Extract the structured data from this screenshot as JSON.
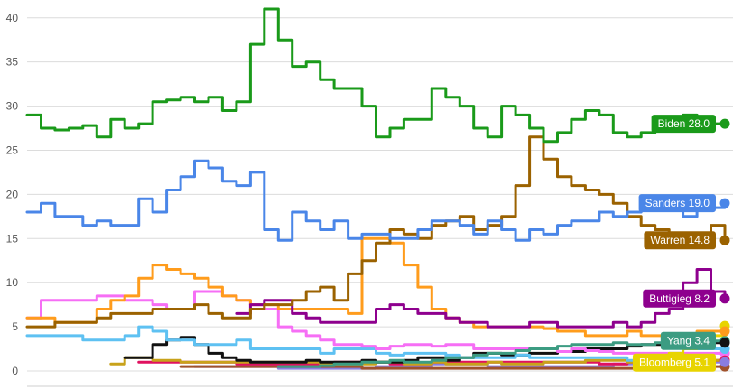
{
  "chart_data": {
    "type": "line",
    "title": "",
    "xlabel": "",
    "ylabel": "",
    "ylim": [
      0,
      41
    ],
    "yticks": [
      0,
      5,
      10,
      15,
      20,
      25,
      30,
      35,
      40
    ],
    "ytick_labels": [
      "0",
      "5",
      "10",
      "15",
      "20",
      "25",
      "30",
      "35",
      "40"
    ],
    "grid": true,
    "x": [
      0,
      2,
      4,
      6,
      8,
      10,
      12,
      14,
      16,
      18,
      20,
      22,
      24,
      26,
      28,
      30,
      32,
      34,
      36,
      38,
      40,
      42,
      44,
      46,
      48,
      50,
      52,
      54,
      56,
      58,
      60,
      62,
      64,
      66,
      68,
      70,
      72,
      74,
      76,
      78,
      80,
      82,
      84,
      86,
      88,
      90,
      92,
      94,
      96,
      98,
      100
    ],
    "series": [
      {
        "name": "Biden",
        "label": "Biden 28.0",
        "color": "#1a9a1a",
        "values": [
          29.0,
          27.5,
          27.3,
          27.5,
          27.8,
          26.5,
          28.5,
          27.5,
          28.0,
          30.5,
          30.7,
          31.0,
          30.5,
          31.0,
          29.5,
          30.5,
          37.0,
          41.0,
          37.5,
          34.5,
          35.0,
          33.0,
          32.0,
          32.0,
          30.0,
          26.5,
          27.5,
          28.5,
          28.5,
          32.0,
          31.0,
          30.0,
          27.5,
          26.5,
          30.0,
          29.0,
          27.5,
          26.0,
          27.0,
          28.5,
          29.5,
          29.0,
          27.0,
          26.5,
          27.0,
          28.5,
          27.5,
          29.0,
          28.5,
          28.0,
          28.0
        ]
      },
      {
        "name": "Sanders",
        "label": "Sanders 19.0",
        "color": "#4a86e8",
        "values": [
          18.0,
          19.0,
          17.5,
          17.5,
          16.5,
          17.0,
          16.5,
          16.5,
          19.5,
          18.0,
          20.5,
          22.0,
          23.8,
          23.0,
          21.5,
          21.0,
          22.5,
          16.0,
          14.8,
          18.0,
          17.0,
          16.0,
          17.0,
          15.0,
          15.5,
          15.5,
          15.0,
          15.0,
          16.0,
          17.0,
          17.0,
          16.5,
          15.5,
          17.0,
          16.0,
          14.8,
          16.0,
          15.5,
          16.5,
          17.0,
          17.0,
          18.0,
          17.5,
          18.0,
          19.0,
          19.0,
          18.5,
          17.5,
          18.5,
          18.5,
          19.0
        ]
      },
      {
        "name": "Warren",
        "label": "Warren 14.8",
        "color": "#9b6200",
        "values": [
          5.0,
          5.0,
          5.5,
          5.5,
          5.5,
          6.0,
          6.5,
          6.5,
          6.5,
          7.0,
          7.0,
          7.0,
          7.5,
          6.5,
          6.0,
          6.0,
          7.0,
          7.5,
          7.5,
          8.0,
          9.0,
          9.5,
          8.0,
          11.0,
          12.5,
          14.5,
          16.0,
          15.5,
          15.0,
          16.5,
          17.0,
          17.5,
          16.0,
          16.5,
          17.5,
          21.0,
          26.5,
          24.0,
          22.0,
          21.0,
          20.5,
          20.0,
          19.0,
          17.5,
          16.5,
          16.0,
          15.0,
          14.5,
          15.5,
          16.5,
          14.8
        ]
      },
      {
        "name": "Buttigieg",
        "label": "Buttigieg 8.2",
        "color": "#8e008e",
        "values": [
          null,
          null,
          null,
          null,
          null,
          null,
          null,
          null,
          null,
          null,
          null,
          null,
          null,
          null,
          null,
          6.5,
          7.5,
          8.0,
          8.0,
          6.5,
          6.0,
          5.5,
          5.5,
          5.5,
          5.5,
          7.0,
          7.5,
          7.0,
          6.5,
          6.5,
          6.0,
          5.5,
          5.5,
          5.0,
          5.0,
          5.0,
          5.5,
          5.5,
          5.0,
          5.0,
          5.0,
          5.0,
          5.5,
          5.0,
          5.5,
          6.5,
          7.0,
          10.0,
          11.5,
          9.0,
          8.2
        ]
      },
      {
        "name": "Yang",
        "label": "Yang 3.4",
        "color": "#3c9c82",
        "values": [
          null,
          null,
          null,
          null,
          null,
          null,
          null,
          null,
          null,
          null,
          null,
          null,
          null,
          null,
          null,
          null,
          null,
          null,
          0.5,
          0.5,
          0.5,
          0.6,
          0.8,
          0.8,
          1.0,
          1.0,
          1.2,
          1.0,
          1.0,
          1.2,
          1.5,
          1.5,
          1.8,
          2.0,
          2.0,
          2.3,
          2.5,
          2.5,
          2.8,
          3.0,
          3.0,
          3.0,
          3.2,
          3.0,
          3.0,
          3.2,
          3.2,
          3.3,
          3.3,
          3.4,
          3.4
        ]
      },
      {
        "name": "Bloomberg",
        "label": "Bloomberg 5.1",
        "color": "#e8d400",
        "values": [
          null,
          null,
          null,
          null,
          null,
          null,
          null,
          null,
          null,
          null,
          null,
          null,
          null,
          null,
          null,
          null,
          null,
          null,
          null,
          null,
          null,
          null,
          null,
          null,
          null,
          null,
          null,
          null,
          null,
          null,
          null,
          null,
          null,
          null,
          null,
          null,
          null,
          null,
          null,
          null,
          null,
          null,
          null,
          null,
          null,
          1.5,
          2.0,
          2.5,
          3.0,
          4.0,
          5.1
        ]
      },
      {
        "name": "",
        "color": "#ff9c1c",
        "values": [
          6.0,
          6.0,
          5.5,
          5.5,
          5.5,
          7.0,
          8.0,
          8.5,
          10.5,
          12.0,
          11.5,
          11.0,
          10.5,
          9.5,
          8.5,
          8.0,
          7.5,
          7.5,
          7.0,
          7.0,
          7.0,
          7.0,
          7.0,
          6.5,
          15.0,
          15.0,
          14.5,
          12.0,
          9.5,
          7.0,
          6.0,
          5.5,
          5.0,
          5.0,
          5.0,
          5.0,
          5.0,
          4.8,
          4.5,
          4.5,
          4.0,
          4.0,
          4.0,
          4.5,
          4.0,
          4.0,
          4.0,
          4.0,
          4.5,
          4.5,
          4.5
        ]
      },
      {
        "name": "",
        "color": "#f66ef5",
        "values": [
          6.0,
          8.0,
          8.0,
          8.0,
          8.0,
          8.5,
          8.5,
          8.0,
          8.0,
          7.5,
          7.0,
          7.0,
          9.0,
          9.0,
          8.5,
          8.0,
          7.5,
          7.0,
          5.0,
          4.5,
          4.0,
          3.5,
          3.0,
          3.0,
          2.8,
          2.5,
          2.8,
          3.0,
          3.0,
          2.8,
          3.0,
          3.0,
          2.5,
          2.5,
          2.5,
          2.5,
          2.5,
          2.5,
          2.2,
          2.5,
          2.3,
          2.2,
          2.0,
          2.0,
          2.0,
          2.0,
          2.0,
          2.0,
          2.0,
          2.0,
          2.0
        ]
      },
      {
        "name": "",
        "color": "#5ec1f2",
        "values": [
          4.0,
          4.0,
          4.0,
          4.0,
          3.5,
          3.5,
          3.5,
          4.0,
          5.0,
          4.5,
          3.5,
          3.5,
          3.0,
          3.0,
          3.0,
          3.5,
          2.5,
          2.5,
          2.5,
          2.5,
          2.5,
          2.0,
          2.5,
          2.5,
          2.5,
          2.0,
          1.8,
          2.0,
          2.0,
          2.0,
          1.8,
          1.5,
          1.5,
          1.5,
          1.5,
          1.8,
          1.5,
          1.5,
          1.5,
          1.5,
          1.5,
          1.5,
          1.5,
          1.2,
          1.5,
          1.5,
          2.0,
          2.5,
          2.5,
          2.5,
          2.5
        ]
      },
      {
        "name": "",
        "color": "#111111",
        "values": [
          null,
          null,
          null,
          null,
          null,
          null,
          null,
          1.5,
          1.5,
          3.0,
          3.5,
          3.8,
          3.0,
          2.0,
          1.5,
          1.2,
          1.0,
          1.0,
          1.0,
          1.0,
          1.2,
          1.0,
          1.0,
          1.0,
          1.2,
          1.0,
          1.0,
          1.2,
          1.5,
          1.5,
          1.2,
          1.5,
          2.0,
          2.0,
          1.8,
          1.8,
          2.0,
          2.0,
          2.2,
          2.2,
          2.5,
          2.5,
          2.5,
          2.8,
          3.0,
          3.0,
          3.0,
          3.2,
          3.2,
          3.2,
          3.2
        ]
      },
      {
        "name": "",
        "color": "#c8a21a",
        "values": [
          null,
          null,
          null,
          null,
          null,
          null,
          0.8,
          1.5,
          1.5,
          1.2,
          1.2,
          1.0,
          1.0,
          1.0,
          1.0,
          1.0,
          1.0,
          1.0,
          1.0,
          1.0,
          1.0,
          0.8,
          0.8,
          0.8,
          0.8,
          1.0,
          1.0,
          0.8,
          0.8,
          1.0,
          0.8,
          0.8,
          0.8,
          1.0,
          0.8,
          0.8,
          0.8,
          1.0,
          1.0,
          1.0,
          1.2,
          1.2,
          1.2,
          1.0,
          1.0,
          1.2,
          1.2,
          1.2,
          1.2,
          1.2,
          1.2
        ]
      },
      {
        "name": "",
        "color": "#e0115f",
        "values": [
          null,
          null,
          null,
          null,
          null,
          null,
          null,
          null,
          1.0,
          1.0,
          1.0,
          1.0,
          1.0,
          1.0,
          1.0,
          0.8,
          0.8,
          0.8,
          0.8,
          0.8,
          0.8,
          0.8,
          1.0,
          1.0,
          1.0,
          1.0,
          0.8,
          0.8,
          0.8,
          1.0,
          1.0,
          1.0,
          1.0,
          1.0,
          1.0,
          1.0,
          1.0,
          1.0,
          1.0,
          1.0,
          1.0,
          0.8,
          0.8,
          1.0,
          1.0,
          1.0,
          1.0,
          1.0,
          1.2,
          1.2,
          1.2
        ]
      },
      {
        "name": "",
        "color": "#a0522d",
        "values": [
          null,
          null,
          null,
          null,
          null,
          null,
          null,
          null,
          null,
          null,
          null,
          0.5,
          0.5,
          0.5,
          0.5,
          0.5,
          0.5,
          0.5,
          0.5,
          0.5,
          0.5,
          0.5,
          0.5,
          0.5,
          0.3,
          0.3,
          0.3,
          0.3,
          0.3,
          0.3,
          0.3,
          0.3,
          0.3,
          0.3,
          0.3,
          0.3,
          0.3,
          0.3,
          0.3,
          0.3,
          0.3,
          0.3,
          0.3,
          0.3,
          0.3,
          0.3,
          0.3,
          0.5,
          0.5,
          0.5,
          0.5
        ]
      },
      {
        "name": "",
        "color": "#8a7de0",
        "values": [
          null,
          null,
          null,
          null,
          null,
          null,
          null,
          null,
          null,
          null,
          null,
          null,
          0.5,
          0.5,
          0.5,
          0.5,
          0.5,
          0.5,
          0.3,
          0.3,
          0.3,
          0.3,
          0.3,
          0.3,
          0.3,
          0.5,
          0.5,
          0.5,
          0.5,
          0.8,
          0.8,
          0.8,
          0.8,
          0.5,
          0.5,
          0.5,
          0.5,
          0.5,
          0.5,
          0.5,
          0.5,
          0.5,
          0.8,
          0.8,
          0.8,
          0.8,
          0.8,
          1.0,
          1.0,
          1.0,
          1.0
        ]
      }
    ]
  }
}
